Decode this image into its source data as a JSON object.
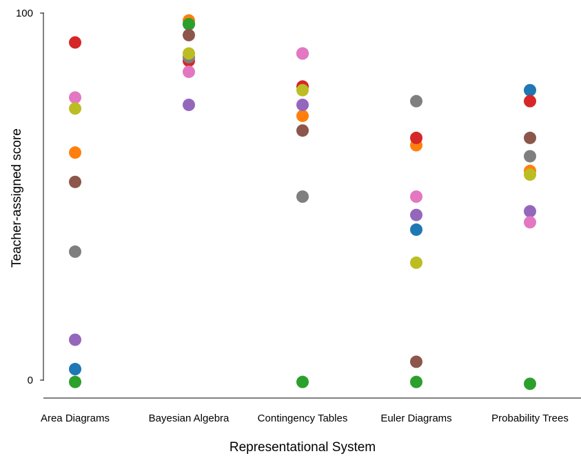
{
  "chart_data": {
    "type": "scatter",
    "title": "",
    "xlabel": "Representational System",
    "ylabel": "Teacher-assigned score",
    "ylim": [
      0,
      100
    ],
    "yticks": [
      "0",
      "100"
    ],
    "grid": false,
    "categories": [
      "Area Diagrams",
      "Bayesian Algebra",
      "Contingency Tables",
      "Euler Diagrams",
      "Probability Trees"
    ],
    "colors": {
      "blue": "#1f77b4",
      "orange": "#ff7f0e",
      "green": "#2ca02c",
      "red": "#d62728",
      "purple": "#9467bd",
      "brown": "#8c564b",
      "pink": "#e377c2",
      "gray": "#7f7f7f",
      "olive": "#bcbd22"
    },
    "series": [
      {
        "color": "blue",
        "values": [
          3,
          97,
          89,
          41,
          79
        ]
      },
      {
        "color": "orange",
        "values": [
          62,
          98,
          72,
          64,
          57
        ]
      },
      {
        "color": "green",
        "values": [
          -0.5,
          97,
          -0.5,
          -0.5,
          -1
        ]
      },
      {
        "color": "red",
        "values": [
          92,
          87,
          80,
          66,
          76
        ]
      },
      {
        "color": "purple",
        "values": [
          11,
          75,
          75,
          45,
          46
        ]
      },
      {
        "color": "brown",
        "values": [
          54,
          94,
          68,
          5,
          66
        ]
      },
      {
        "color": "pink",
        "values": [
          77,
          84,
          89,
          50,
          43
        ]
      },
      {
        "color": "gray",
        "values": [
          35,
          88,
          50,
          76,
          61
        ]
      },
      {
        "color": "olive",
        "values": [
          74,
          89,
          79,
          32,
          56
        ]
      }
    ]
  }
}
